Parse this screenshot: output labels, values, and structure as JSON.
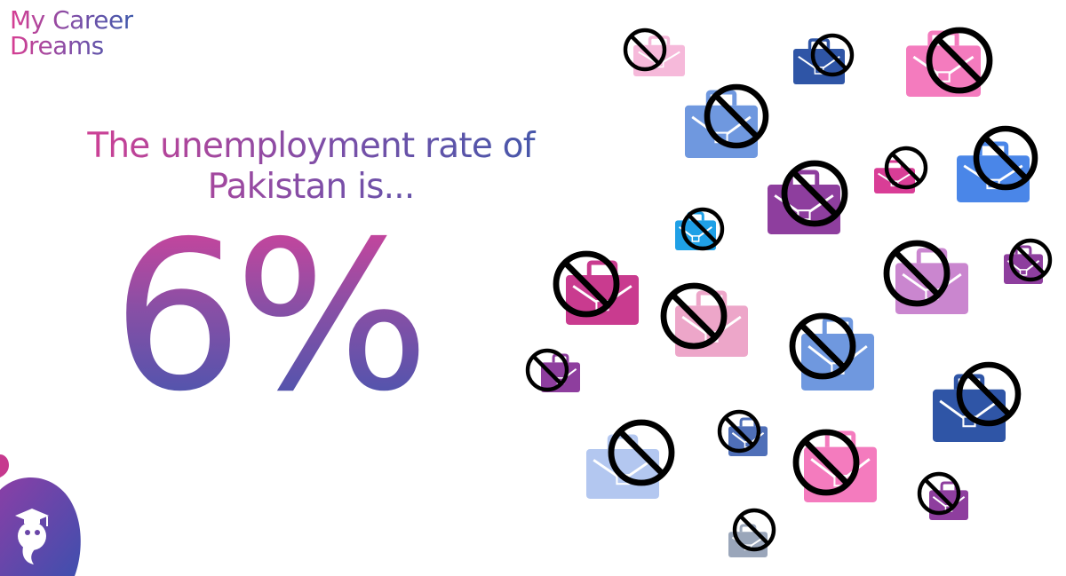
{
  "brand": {
    "line1": "My Career",
    "line2": "Dreams"
  },
  "headline": {
    "line1": "The unemployment rate of",
    "line2": "Pakistan is..."
  },
  "big_value": "6%",
  "icons": {
    "bag": "briefcase-icon",
    "prohibited": "no-symbol-icon",
    "mascot": "graduate-mascot-icon"
  },
  "colors": {
    "pink": "#d83e92",
    "purple": "#8e3e9e",
    "blue": "#3e58aa",
    "light_blue": "#4a86e8"
  }
}
